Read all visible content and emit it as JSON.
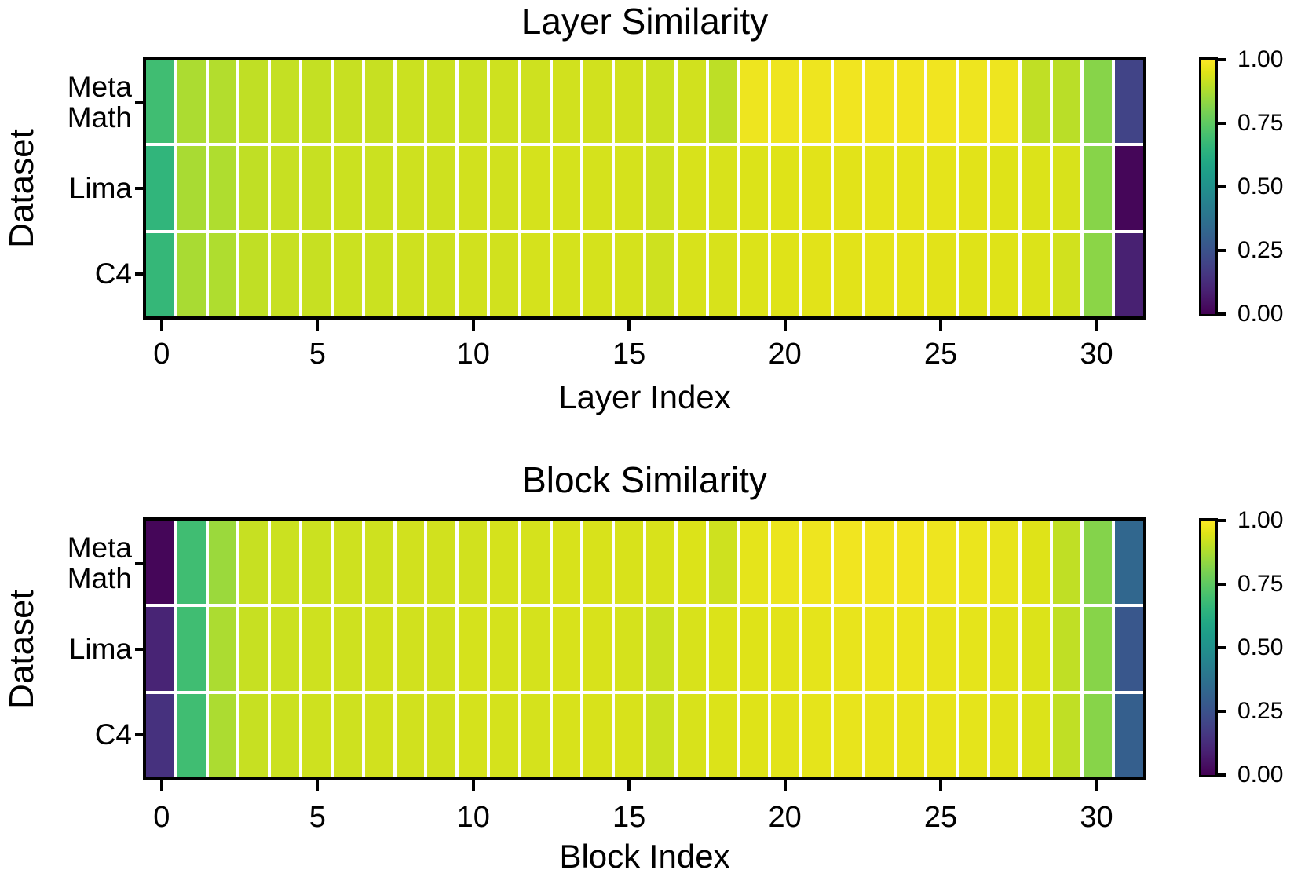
{
  "figure": {
    "background": "#ffffff",
    "text_color": "#000000",
    "gridline_color": "#ffffff",
    "border_color": "#000000"
  },
  "colormap": {
    "name": "viridis",
    "stops": [
      "#440154",
      "#471365",
      "#482475",
      "#463480",
      "#414487",
      "#3b528b",
      "#355f8d",
      "#2f6c8e",
      "#2a788e",
      "#25848e",
      "#21918c",
      "#1e9c89",
      "#22a884",
      "#2fb47c",
      "#44bf70",
      "#5ec962",
      "#7ad151",
      "#9bd93c",
      "#bddf26",
      "#dfe318",
      "#fde725"
    ]
  },
  "chart_data": [
    {
      "type": "heatmap",
      "title": "Layer Similarity",
      "xlabel": "Layer Index",
      "ylabel": "Dataset",
      "rows_display": [
        "Meta\nMath",
        "Lima",
        "C4"
      ],
      "n_columns": 32,
      "xlim": [
        -0.5,
        31.5
      ],
      "x_ticks": [
        0,
        5,
        10,
        15,
        20,
        25,
        30
      ],
      "x_tick_labels": [
        "0",
        "5",
        "10",
        "15",
        "20",
        "25",
        "30"
      ],
      "vmin": 0.0,
      "vmax": 1.0,
      "colormap": "viridis",
      "colorbar_tick_labels": [
        "1.00",
        "0.75",
        "0.50",
        "0.25",
        "0.00"
      ],
      "series": [
        {
          "name": "Meta Math",
          "values": [
            0.69,
            0.875,
            0.885,
            0.905,
            0.91,
            0.91,
            0.915,
            0.915,
            0.92,
            0.92,
            0.92,
            0.925,
            0.925,
            0.93,
            0.93,
            0.93,
            0.92,
            0.93,
            0.9,
            0.975,
            0.975,
            0.975,
            0.98,
            0.98,
            0.98,
            0.98,
            0.975,
            0.975,
            0.905,
            0.895,
            0.82,
            0.2
          ]
        },
        {
          "name": "Lima",
          "values": [
            0.655,
            0.87,
            0.88,
            0.905,
            0.915,
            0.915,
            0.92,
            0.92,
            0.925,
            0.925,
            0.93,
            0.93,
            0.935,
            0.935,
            0.935,
            0.935,
            0.925,
            0.94,
            0.94,
            0.945,
            0.95,
            0.955,
            0.955,
            0.96,
            0.96,
            0.96,
            0.955,
            0.95,
            0.945,
            0.94,
            0.82,
            0.015
          ]
        },
        {
          "name": "C4",
          "values": [
            0.665,
            0.87,
            0.88,
            0.905,
            0.915,
            0.915,
            0.92,
            0.92,
            0.925,
            0.925,
            0.93,
            0.93,
            0.935,
            0.935,
            0.935,
            0.935,
            0.925,
            0.94,
            0.94,
            0.945,
            0.95,
            0.955,
            0.955,
            0.96,
            0.96,
            0.955,
            0.95,
            0.95,
            0.945,
            0.93,
            0.825,
            0.09
          ]
        }
      ]
    },
    {
      "type": "heatmap",
      "title": "Block Similarity",
      "xlabel": "Block Index",
      "ylabel": "Dataset",
      "rows_display": [
        "Meta\nMath",
        "Lima",
        "C4"
      ],
      "n_columns": 32,
      "xlim": [
        -0.5,
        31.5
      ],
      "x_ticks": [
        0,
        5,
        10,
        15,
        20,
        25,
        30
      ],
      "x_tick_labels": [
        "0",
        "5",
        "10",
        "15",
        "20",
        "25",
        "30"
      ],
      "vmin": 0.0,
      "vmax": 1.0,
      "colormap": "viridis",
      "colorbar_tick_labels": [
        "1.00",
        "0.75",
        "0.50",
        "0.25",
        "0.00"
      ],
      "series": [
        {
          "name": "Meta Math",
          "values": [
            0.015,
            0.69,
            0.85,
            0.915,
            0.92,
            0.92,
            0.925,
            0.925,
            0.93,
            0.93,
            0.93,
            0.935,
            0.935,
            0.94,
            0.94,
            0.94,
            0.94,
            0.945,
            0.925,
            0.96,
            0.97,
            0.975,
            0.98,
            0.98,
            0.98,
            0.975,
            0.97,
            0.965,
            0.95,
            0.905,
            0.815,
            0.33
          ]
        },
        {
          "name": "Lima",
          "values": [
            0.1,
            0.69,
            0.875,
            0.915,
            0.92,
            0.925,
            0.925,
            0.93,
            0.93,
            0.93,
            0.935,
            0.935,
            0.935,
            0.94,
            0.94,
            0.935,
            0.92,
            0.94,
            0.945,
            0.95,
            0.955,
            0.96,
            0.965,
            0.97,
            0.97,
            0.965,
            0.96,
            0.955,
            0.945,
            0.905,
            0.82,
            0.27
          ]
        },
        {
          "name": "C4",
          "values": [
            0.14,
            0.69,
            0.875,
            0.915,
            0.92,
            0.925,
            0.925,
            0.93,
            0.93,
            0.93,
            0.935,
            0.935,
            0.935,
            0.94,
            0.94,
            0.94,
            0.92,
            0.94,
            0.945,
            0.95,
            0.955,
            0.96,
            0.965,
            0.965,
            0.965,
            0.965,
            0.96,
            0.955,
            0.945,
            0.905,
            0.82,
            0.3
          ]
        }
      ]
    }
  ]
}
